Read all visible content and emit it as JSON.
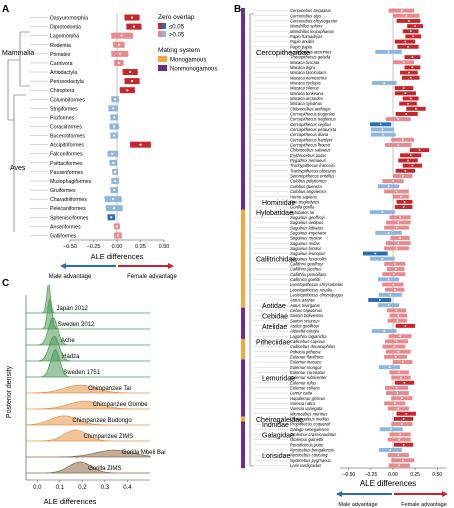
{
  "panels": {
    "A": {
      "letter": "A"
    },
    "B": {
      "letter": "B"
    },
    "C": {
      "letter": "C"
    }
  },
  "colors": {
    "red_strong": "#c8252b",
    "red_light": "#e88a8d",
    "blue_strong": "#2a6db3",
    "blue_light": "#8db6de",
    "monogamous": "#f2a93b",
    "nonmonogamous": "#6a2c8e",
    "green": "#4a9a55",
    "orange": "#e3954a",
    "brown": "#8c6a48"
  },
  "legend": {
    "zero_overlap_title": "Zero overlap",
    "zero_overlap_items": [
      "≤0.05",
      ">0.05"
    ],
    "mating_title": "Mating system",
    "mating_items": [
      "Monogamous",
      "Nonmonogamous"
    ]
  },
  "arrows": {
    "male": "Male advantage",
    "female": "Female advantage"
  },
  "chart_data": [
    {
      "panel": "A",
      "type": "scatter",
      "xlabel": "ALE differences",
      "xlim": [
        -0.5,
        0.5
      ],
      "xticks": [
        "−0.50",
        "−0.25",
        "0.00",
        "0.25",
        "0.50"
      ],
      "group_labels": [
        "Mammalia",
        "Aves"
      ],
      "categories": [
        "Dasyuromorphia",
        "Diprotodontia",
        "Lagomorpha",
        "Rodentia",
        "Primates",
        "Carnivora",
        "Artiodactyla",
        "Perissodactyla",
        "Chiroptera",
        "Columbiformes",
        "Strigiformes",
        "Piciformes",
        "Coraciiformes",
        "Bucerotiformes",
        "Accipitriformes",
        "Falconiformes",
        "Psittaciformes",
        "Passeriformes",
        "Musophagiformes",
        "Gruiformes",
        "Charadriiformes",
        "Pelecaniformes",
        "Sphenisciformes",
        "Anseriformes",
        "Galliformes"
      ],
      "values": [
        0.16,
        0.18,
        0.05,
        0.02,
        0.03,
        0.02,
        0.14,
        0.16,
        0.11,
        -0.02,
        -0.04,
        -0.03,
        -0.03,
        -0.03,
        0.25,
        -0.05,
        -0.04,
        -0.02,
        -0.02,
        -0.03,
        -0.04,
        -0.03,
        -0.06,
        0.0,
        0.01
      ],
      "lower": [
        0.08,
        0.1,
        -0.06,
        -0.04,
        -0.06,
        -0.03,
        0.06,
        0.08,
        0.03,
        -0.06,
        -0.09,
        -0.07,
        -0.08,
        -0.07,
        0.14,
        -0.1,
        -0.08,
        -0.05,
        -0.06,
        -0.07,
        -0.13,
        -0.12,
        -0.1,
        -0.03,
        -0.03
      ],
      "upper": [
        0.24,
        0.26,
        0.17,
        0.08,
        0.12,
        0.07,
        0.22,
        0.24,
        0.19,
        0.02,
        0.01,
        0.01,
        0.02,
        0.01,
        0.36,
        0.01,
        0.0,
        0.01,
        0.02,
        0.01,
        0.05,
        0.06,
        -0.02,
        0.03,
        0.05
      ],
      "zero_overlap_sig": [
        true,
        true,
        false,
        false,
        false,
        false,
        true,
        true,
        true,
        false,
        false,
        false,
        false,
        false,
        true,
        false,
        false,
        false,
        false,
        false,
        false,
        false,
        true,
        false,
        false
      ]
    },
    {
      "panel": "B",
      "type": "scatter",
      "xlabel": "ALE differences",
      "xlim": [
        -0.6,
        0.6
      ],
      "xticks": [
        "−0.50",
        "−0.25",
        "0.00",
        "0.25",
        "0.50"
      ],
      "family_labels": [
        "Cercopithecidae",
        "Hominidae",
        "Hylobatidae",
        "Callitrichidae",
        "Aotidae",
        "Cebidae",
        "Atelidae",
        "Pitheciidae",
        "Lemuridae",
        "Cheirogaleidae",
        "Indriidae",
        "Galagidae",
        "Lorisidae"
      ],
      "categories": [
        "Cercocebus torquatus",
        "Cercocebus atys",
        "Cercocebus chrysogaster",
        "Mandrillus sphinx",
        "Mandrillus leucophaeus",
        "Papio hamadryas",
        "Papio anubis",
        "Papio papio",
        "Lophocebus aterrimus",
        "Theropithecus gelada",
        "Macaca fuscata",
        "Macaca nigra",
        "Macaca fascicularis",
        "Macaca nemestrina",
        "Macaca cyclopis",
        "Macaca silenus",
        "Macaca tonkeana",
        "Macaca arctoides",
        "Macaca sylvanus",
        "Chlorocebus aethiops",
        "Cercopithecus pogonias",
        "Cercopithecus neglectus",
        "Cercopithecus cephus",
        "Cercopithecus petaurista",
        "Cercopithecus diana",
        "Cercopithecus hamlyni",
        "Cercopithecus lhoesti",
        "Chlorocebus sabaeus",
        "Erythrocebus patas",
        "Pygathrix nemaeus",
        "Trachypithecus francoisi",
        "Trachypithecus obscurus",
        "Semnopithecus entellus",
        "Colobus polykomos",
        "Colobus guereza",
        "Colobus angolensis",
        "Homo sapiens",
        "Pan troglodytes",
        "Gorilla gorilla",
        "Hylobates lar",
        "Saguinus geoffroyi",
        "Saguinus oedipus",
        "Saguinus labiatus",
        "Saguinus imperator",
        "Saguinus mystax",
        "Saguinus midas",
        "Saguinus bicolor",
        "Saguinus leucopus",
        "Saguinus fuscicollis",
        "Callithrix geoffroyi",
        "Callithrix jacchus",
        "Callithrix penicillata",
        "Callimico goeldii",
        "Leontopithecus chrysomelas",
        "Leontopithecus rosalia",
        "Leontopithecus chrysopygus",
        "Aotus azarae",
        "Aotus trivirgatus",
        "Cebus capucinus",
        "Saimiri boliviensis",
        "Saimiri sciureus",
        "Ateles geoffroyi",
        "Alouatta caraya",
        "Lagothrix lagotricha",
        "Callicebus cupreus",
        "Callicebus donacophilus",
        "Pithecia pithecia",
        "Eulemur flavifrons",
        "Eulemur macaco",
        "Eulemur mongoz",
        "Eulemur coronatus",
        "Eulemur rubriventer",
        "Eulemur rufus",
        "Eulemur collaris",
        "Lemur catta",
        "Hapalemur griseus",
        "Varecia rubra",
        "Varecia variegata",
        "Microcebus murinus",
        "Cheirogaleus medius",
        "Propithecus coquereli",
        "Galago senegalensis",
        "Otolemur crassicaudatus",
        "Otolemur garnettii",
        "Perodicticus potto",
        "Nycticebus bengalensis",
        "Nycticebus coucang",
        "Nycticebus pygmaeus",
        "Loris tardigradus"
      ],
      "values": [
        0.1,
        0.15,
        0.18,
        0.25,
        0.2,
        0.23,
        0.14,
        0.17,
        -0.05,
        0.22,
        0.12,
        0.22,
        0.18,
        0.2,
        -0.1,
        0.12,
        0.14,
        0.2,
        0.17,
        0.26,
        0.15,
        0.06,
        -0.14,
        -0.12,
        -0.11,
        0.11,
        0.06,
        0.3,
        0.2,
        0.17,
        0.22,
        0.14,
        0.11,
        0.0,
        -0.05,
        0.04,
        0.09,
        0.13,
        0.12,
        -0.12,
        0.08,
        0.06,
        0.04,
        -0.05,
        0.08,
        0.06,
        0.04,
        -0.2,
        -0.12,
        0.02,
        0.03,
        0.01,
        -0.05,
        0.0,
        0.02,
        -0.03,
        -0.15,
        -0.05,
        0.04,
        0.06,
        0.05,
        0.14,
        -0.1,
        0.08,
        0.04,
        0.01,
        0.06,
        0.03,
        0.11,
        -0.04,
        0.07,
        0.09,
        0.13,
        0.04,
        0.05,
        0.1,
        0.02,
        0.06,
        0.15,
        0.12,
        0.1,
        -0.02,
        0.08,
        0.07,
        0.12,
        -0.03,
        0.06,
        0.11,
        0.07
      ],
      "lower": [
        -0.05,
        0.0,
        0.04,
        0.16,
        0.11,
        0.14,
        0.02,
        0.05,
        -0.2,
        0.13,
        0.0,
        0.13,
        0.08,
        0.1,
        -0.24,
        0.02,
        0.02,
        0.11,
        0.07,
        0.15,
        0.03,
        -0.08,
        -0.26,
        -0.25,
        -0.25,
        -0.02,
        -0.09,
        0.19,
        0.08,
        0.06,
        0.11,
        0.03,
        0.0,
        -0.12,
        -0.17,
        -0.1,
        0.0,
        0.04,
        0.02,
        -0.26,
        -0.04,
        -0.08,
        -0.1,
        -0.2,
        -0.03,
        -0.08,
        -0.1,
        -0.34,
        -0.26,
        -0.1,
        -0.07,
        -0.12,
        -0.17,
        -0.12,
        -0.09,
        -0.16,
        -0.28,
        -0.17,
        -0.07,
        -0.04,
        -0.06,
        0.03,
        -0.24,
        -0.05,
        -0.09,
        -0.12,
        -0.08,
        -0.1,
        0.0,
        -0.16,
        -0.04,
        -0.02,
        0.02,
        -0.09,
        -0.08,
        -0.02,
        -0.1,
        -0.06,
        0.04,
        0.01,
        -0.02,
        -0.15,
        -0.04,
        -0.06,
        0.01,
        -0.16,
        -0.06,
        -0.02,
        -0.05
      ],
      "upper": [
        0.24,
        0.3,
        0.31,
        0.34,
        0.29,
        0.32,
        0.25,
        0.29,
        0.1,
        0.31,
        0.24,
        0.31,
        0.28,
        0.3,
        0.04,
        0.23,
        0.26,
        0.29,
        0.27,
        0.37,
        0.28,
        0.2,
        -0.02,
        0.01,
        0.03,
        0.24,
        0.21,
        0.41,
        0.32,
        0.28,
        0.33,
        0.25,
        0.22,
        0.12,
        0.07,
        0.18,
        0.18,
        0.22,
        0.22,
        0.02,
        0.2,
        0.2,
        0.18,
        0.1,
        0.19,
        0.2,
        0.18,
        -0.06,
        0.02,
        0.14,
        0.13,
        0.14,
        0.07,
        0.12,
        0.13,
        0.1,
        -0.02,
        0.07,
        0.15,
        0.16,
        0.16,
        0.25,
        0.04,
        0.21,
        0.17,
        0.14,
        0.2,
        0.16,
        0.22,
        0.08,
        0.18,
        0.2,
        0.24,
        0.17,
        0.18,
        0.22,
        0.14,
        0.18,
        0.26,
        0.23,
        0.22,
        0.11,
        0.2,
        0.2,
        0.23,
        0.1,
        0.18,
        0.24,
        0.19
      ]
    },
    {
      "panel": "C",
      "type": "area",
      "xlabel": "ALE differences",
      "ylabel": "Posterior density",
      "xlim": [
        -0.05,
        0.5
      ],
      "xticks": [
        "0.0",
        "0.1",
        "0.2",
        "0.3",
        "0.4"
      ],
      "series": [
        {
          "name": "Japan 2012",
          "mean": 0.05,
          "sd": 0.008,
          "color": "green"
        },
        {
          "name": "Sweden 2012",
          "mean": 0.055,
          "sd": 0.01,
          "color": "green"
        },
        {
          "name": "Ache",
          "mean": 0.07,
          "sd": 0.02,
          "color": "green"
        },
        {
          "name": "Hadza",
          "mean": 0.075,
          "sd": 0.022,
          "color": "green"
        },
        {
          "name": "Sweden 1751",
          "mean": 0.08,
          "sd": 0.02,
          "color": "green"
        },
        {
          "name": "Chimpanzee Tai",
          "mean": 0.19,
          "sd": 0.07,
          "color": "orange"
        },
        {
          "name": "Chimpanzee Gombe",
          "mean": 0.21,
          "sd": 0.07,
          "color": "orange"
        },
        {
          "name": "Chimpanzee Budongo",
          "mean": 0.12,
          "sd": 0.06,
          "color": "orange"
        },
        {
          "name": "Chimpanzee ZIMS",
          "mean": 0.17,
          "sd": 0.05,
          "color": "orange"
        },
        {
          "name": "Gorilla Mbeli Bai",
          "mean": 0.34,
          "sd": 0.08,
          "color": "brown"
        },
        {
          "name": "Gorilla ZIMS",
          "mean": 0.19,
          "sd": 0.05,
          "color": "brown"
        }
      ]
    }
  ]
}
